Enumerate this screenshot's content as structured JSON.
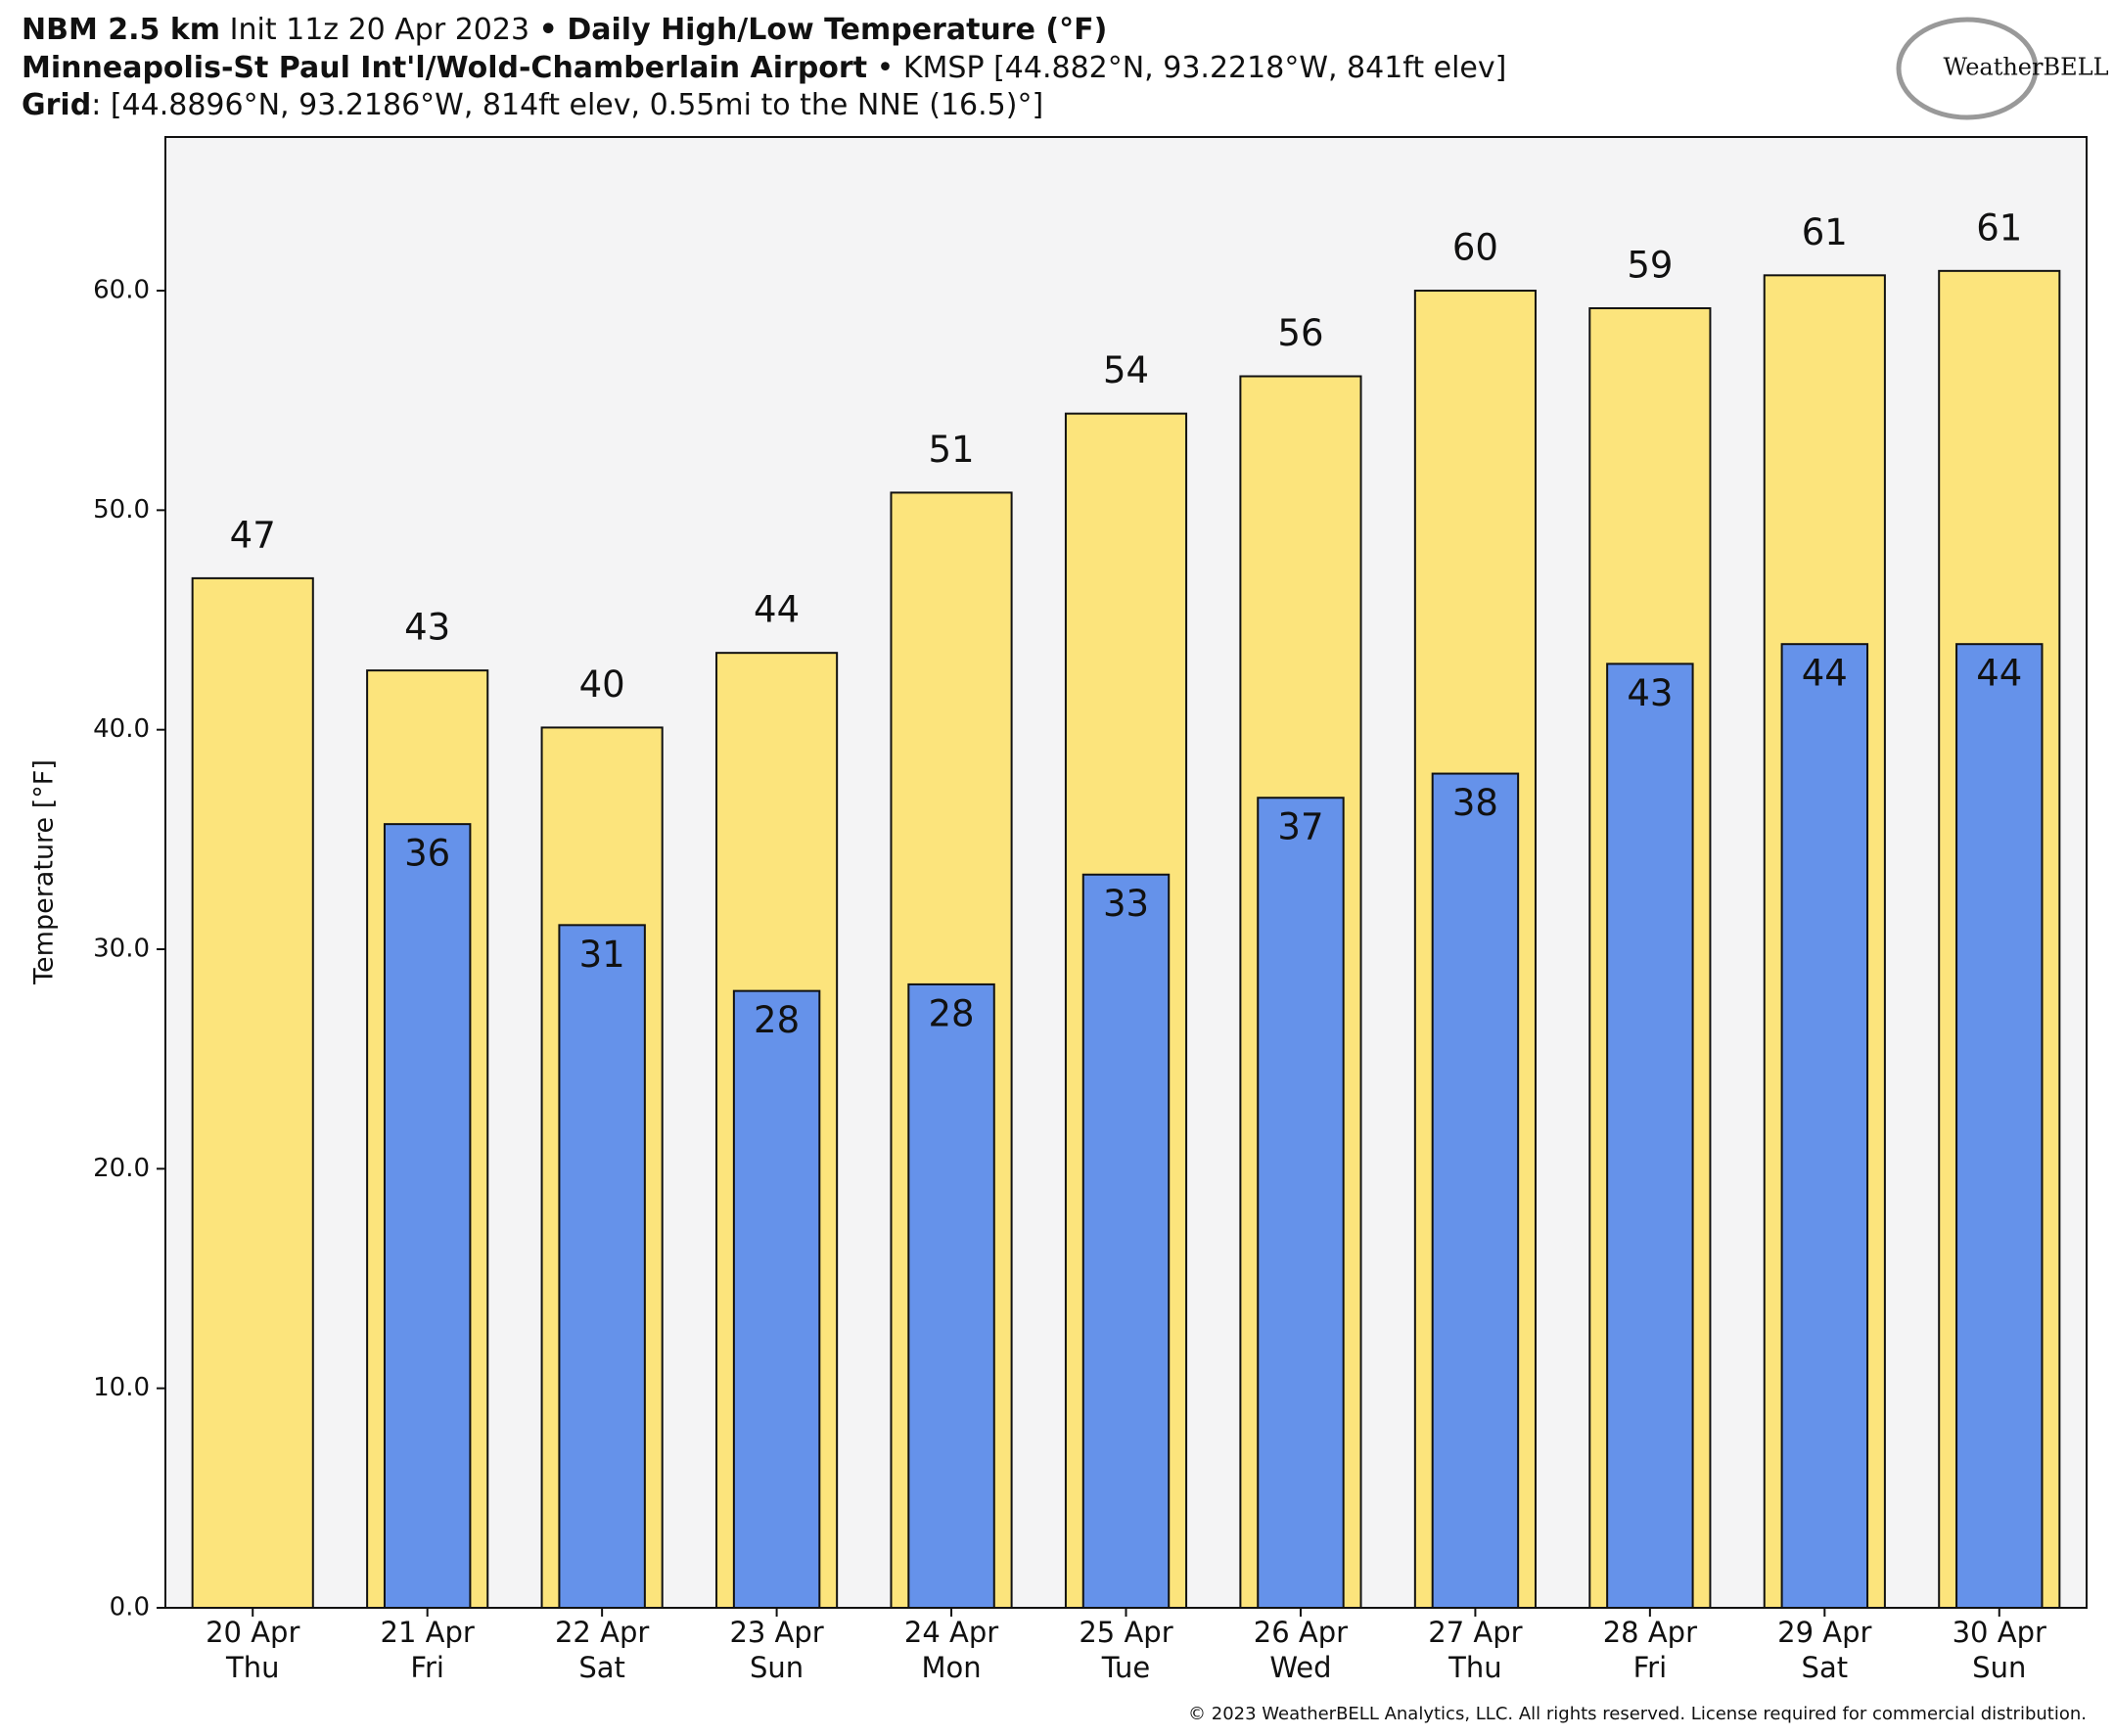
{
  "header": {
    "line1": [
      "NBM 2.5 km",
      "Init 11z 20 Apr 2023",
      "•",
      "Daily High/Low Temperature (°F)"
    ],
    "line2": [
      "Minneapolis-St Paul Int'l/Wold-Chamberlain Airport",
      "• KMSP [44.882°N, 93.2218°W, 841ft elev]"
    ],
    "line3": [
      "Grid",
      ": [44.8896°N, 93.2186°W, 814ft elev, 0.55mi to the NNE (16.5)°]"
    ],
    "logo": "WeatherBELL"
  },
  "footer": "© 2023 WeatherBELL Analytics, LLC. All rights reserved. License required for commercial distribution.",
  "chart_data": {
    "type": "overlap_bar",
    "y_label": "Temperature [°F]",
    "categories": [
      "20 Apr",
      "21 Apr",
      "22 Apr",
      "23 Apr",
      "24 Apr",
      "25 Apr",
      "26 Apr",
      "27 Apr",
      "28 Apr",
      "29 Apr",
      "30 Apr"
    ],
    "weekdays": [
      "Thu",
      "Fri",
      "Sat",
      "Sun",
      "Mon",
      "Tue",
      "Wed",
      "Thu",
      "Fri",
      "Sat",
      "Sun"
    ],
    "series": [
      {
        "name": "High",
        "color": "#fce47c",
        "width": 0.69,
        "label_pos": "above",
        "values": [
          46.9,
          42.7,
          40.1,
          43.5,
          50.8,
          54.4,
          56.1,
          60.0,
          59.2,
          60.7,
          60.9
        ],
        "value_labels": [
          "47",
          "43",
          "40",
          "44",
          "51",
          "54",
          "56",
          "60",
          "59",
          "61",
          "61"
        ]
      },
      {
        "name": "Low",
        "color": "#6592ea",
        "width": 0.49,
        "label_pos": "inside",
        "values": [
          null,
          35.7,
          31.1,
          28.1,
          28.4,
          33.4,
          36.9,
          38.0,
          43.0,
          43.9,
          43.9
        ],
        "value_labels": [
          null,
          "36",
          "31",
          "28",
          "28",
          "33",
          "37",
          "38",
          "43",
          "44",
          "44"
        ]
      }
    ],
    "ylim": [
      0,
      67
    ],
    "yticks": [
      {
        "value": 0,
        "label": "0.0"
      },
      {
        "value": 10,
        "label": "10.0"
      },
      {
        "value": 20,
        "label": "20.0"
      },
      {
        "value": 30,
        "label": "30.0"
      },
      {
        "value": 40,
        "label": "40.0"
      },
      {
        "value": 50,
        "label": "50.0"
      },
      {
        "value": 60,
        "label": "60.0"
      }
    ],
    "grid": false
  }
}
